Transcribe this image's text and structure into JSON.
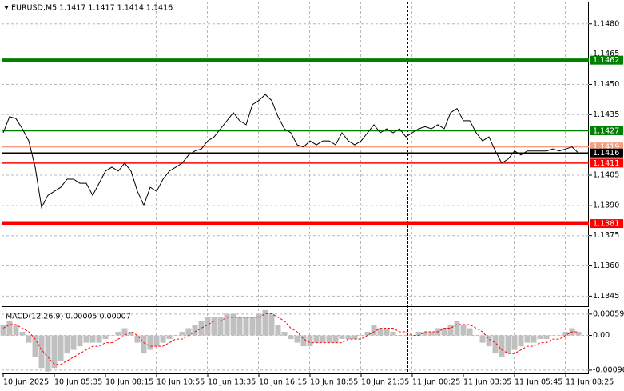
{
  "chart_data": [
    {
      "type": "line",
      "title": "EURUSD,M5  1.1417 1.1417 1.1414 1.1416",
      "categories": [
        "10 Jun 2025",
        null,
        null,
        null,
        null,
        null,
        null,
        null,
        "10 Jun 05:35",
        null,
        null,
        null,
        null,
        null,
        null,
        null,
        "10 Jun 08:15",
        null,
        null,
        null,
        null,
        null,
        null,
        null,
        "10 Jun 10:55",
        null,
        null,
        null,
        null,
        null,
        null,
        null,
        "10 Jun 13:35",
        null,
        null,
        null,
        null,
        null,
        null,
        null,
        "10 Jun 16:15",
        null,
        null,
        null,
        null,
        null,
        null,
        null,
        "10 Jun 18:55",
        null,
        null,
        null,
        null,
        null,
        null,
        null,
        "10 Jun 21:35",
        null,
        null,
        null,
        null,
        null,
        null,
        null,
        "11 Jun 00:25",
        null,
        null,
        null,
        null,
        null,
        null,
        null,
        "11 Jun 03:05",
        null,
        null,
        null,
        null,
        null,
        null,
        null,
        "11 Jun 05:45",
        null,
        null,
        null,
        null,
        null,
        null,
        null,
        "11 Jun 08:25",
        null,
        null
      ],
      "series": [
        {
          "color": "#000000",
          "values": [
            1.1426,
            1.1434,
            1.1433,
            1.1428,
            1.1422,
            1.1409,
            1.1389,
            1.1395,
            1.1397,
            1.1399,
            1.1403,
            1.1403,
            1.1401,
            1.1401,
            1.1395,
            1.1401,
            1.1407,
            1.1409,
            1.1407,
            1.1411,
            1.1407,
            1.1397,
            1.139,
            1.1399,
            1.1397,
            1.1403,
            1.1407,
            1.1409,
            1.1411,
            1.1415,
            1.1417,
            1.1418,
            1.1422,
            1.1424,
            1.1428,
            1.1432,
            1.1436,
            1.1432,
            1.143,
            1.144,
            1.1442,
            1.1445,
            1.1442,
            1.1434,
            1.1428,
            1.1426,
            1.142,
            1.1419,
            1.1422,
            1.142,
            1.1422,
            1.1422,
            1.142,
            1.1426,
            1.1422,
            1.142,
            1.1422,
            1.1426,
            1.143,
            1.1426,
            1.1428,
            1.1426,
            1.1428,
            1.1424,
            1.1426,
            1.1428,
            1.1429,
            1.1428,
            1.143,
            1.1428,
            1.1436,
            1.1438,
            1.1432,
            1.1432,
            1.1426,
            1.1422,
            1.1424,
            1.1417,
            1.1411,
            1.1413,
            1.1417,
            1.1415,
            1.1417,
            1.1417,
            1.1417,
            1.1417,
            1.1418,
            1.1417,
            1.1418,
            1.1419,
            1.1416
          ]
        }
      ],
      "levels": [
        {
          "value": 1.1462,
          "color": "#008000",
          "thick": true
        },
        {
          "value": 1.1427,
          "color": "#008000",
          "thick": false
        },
        {
          "value": 1.1419,
          "color": "#f4a080",
          "thick": false
        },
        {
          "value": 1.1416,
          "color": "#000000",
          "thick": false
        },
        {
          "value": 1.1411,
          "color": "#ff0000",
          "thick": false
        },
        {
          "value": 1.1381,
          "color": "#ff0000",
          "thick": true
        }
      ],
      "ylim": [
        1.134,
        1.1491
      ],
      "yticks": [
        {
          "value": 1.148,
          "label": "1.1480"
        },
        1.1465,
        {
          "value": 1.145,
          "label": "1.1450"
        },
        1.1435,
        1.1405,
        {
          "value": 1.139,
          "label": "1.1390"
        },
        1.1375,
        {
          "value": 1.136,
          "label": "1.1360"
        },
        1.1345
      ],
      "grid": true
    },
    {
      "type": "macd",
      "title": "MACD(12,26,9) 0.00005 0.00007",
      "series": [
        {
          "color": "#c0c0c0",
          "values": [
            0.0003,
            0.0004,
            0.0003,
            0.0001,
            -0.0002,
            -0.0006,
            -0.0009,
            -0.001,
            -0.0009,
            -0.0007,
            -0.0005,
            -0.0004,
            -0.0003,
            -0.0002,
            -0.0002,
            -0.0002,
            -0.0001,
            0,
            0.0001,
            0.0002,
            0.0001,
            -0.0002,
            -0.0005,
            -0.0004,
            -0.0003,
            -0.0002,
            -0.0001,
            0,
            0.0001,
            0.0002,
            0.0003,
            0.0004,
            0.0005,
            0.0005,
            0.0005,
            0.0006,
            0.0006,
            0.0005,
            0.0005,
            0.0005,
            0.0006,
            0.0007,
            0.0006,
            0.0003,
            0.0001,
            -0.0001,
            -0.0002,
            -0.0003,
            -0.0003,
            -0.0002,
            -0.0002,
            -0.0002,
            -0.0002,
            -0.0001,
            -0.0001,
            -0.0001,
            0,
            0.0001,
            0.0003,
            0.0002,
            0.0002,
            0.0001,
            0,
            0,
            0,
            0.0001,
            0.0001,
            0.0001,
            0.0002,
            0.0002,
            0.0003,
            0.0004,
            0.0003,
            0.0002,
            0,
            -0.0002,
            -0.0003,
            -0.0005,
            -0.0006,
            -0.0005,
            -0.0004,
            -0.0003,
            -0.0002,
            -0.0002,
            -0.0001,
            -0.0001,
            0,
            0,
            0.0001,
            0.0002,
            0.0001
          ]
        },
        {
          "color": "#ff0000",
          "values": [
            0.0002,
            0.0003,
            0.0003,
            0.0002,
            0.0001,
            -0.0001,
            -0.0004,
            -0.0006,
            -0.0008,
            -0.0008,
            -0.0007,
            -0.0006,
            -0.0005,
            -0.0004,
            -0.0003,
            -0.0003,
            -0.0002,
            -0.0002,
            -0.0001,
            0,
            0.0001,
            0,
            -0.0002,
            -0.0003,
            -0.0003,
            -0.0003,
            -0.0002,
            -0.0001,
            -0.0001,
            0,
            0.0001,
            0.0002,
            0.0003,
            0.0004,
            0.0004,
            0.0005,
            0.0005,
            0.0005,
            0.0005,
            0.0005,
            0.0005,
            0.0006,
            0.0006,
            0.0005,
            0.0004,
            0.0002,
            0.0001,
            -0.0001,
            -0.0002,
            -0.0002,
            -0.0002,
            -0.0002,
            -0.0002,
            -0.0002,
            -0.0001,
            -0.0001,
            -0.0001,
            0,
            0.0001,
            0.0002,
            0.0002,
            0.0002,
            0.0001,
            0.0001,
            0,
            0,
            0.0001,
            0.0001,
            0.0001,
            0.0002,
            0.0002,
            0.0003,
            0.0003,
            0.0003,
            0.0002,
            0.0001,
            -0.0001,
            -0.0002,
            -0.0004,
            -0.0005,
            -0.0005,
            -0.0004,
            -0.0003,
            -0.0003,
            -0.0002,
            -0.0002,
            -0.0001,
            -0.0001,
            0,
            0.0001,
            0.0001
          ]
        }
      ],
      "ylim": [
        -0.00105,
        0.00072
      ],
      "yticks": [
        0.00059,
        {
          "value": 0,
          "label": "0.00"
        },
        -0.00096
      ],
      "grid": true
    }
  ]
}
